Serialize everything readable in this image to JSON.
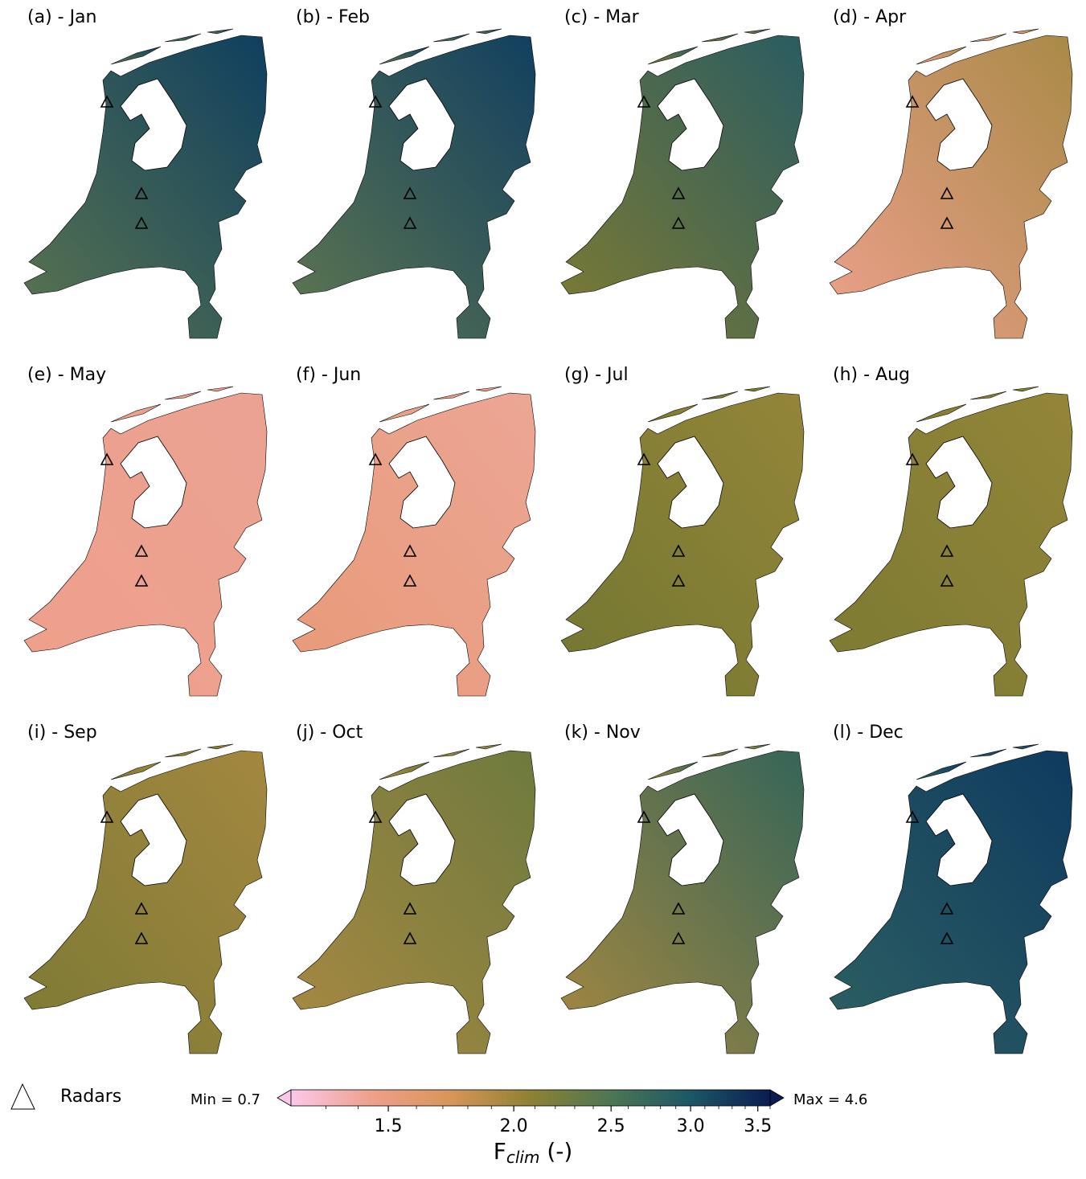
{
  "panels": [
    {
      "title": "(a) - Jan",
      "colors": [
        "#0f3f5f",
        "#5b7550"
      ]
    },
    {
      "title": "(b) - Feb",
      "colors": [
        "#113f60",
        "#5f7750"
      ]
    },
    {
      "title": "(c) - Mar",
      "colors": [
        "#2a5c62",
        "#7e7b32"
      ]
    },
    {
      "title": "(d) - Apr",
      "colors": [
        "#a98a47",
        "#eda08c"
      ]
    },
    {
      "title": "(e) - May",
      "colors": [
        "#eba293",
        "#eea08a"
      ]
    },
    {
      "title": "(f) - Jun",
      "colors": [
        "#eca695",
        "#e89a78"
      ]
    },
    {
      "title": "(g) - Jul",
      "colors": [
        "#938538",
        "#737732"
      ]
    },
    {
      "title": "(h) - Aug",
      "colors": [
        "#938538",
        "#7c7a33"
      ]
    },
    {
      "title": "(i) - Sep",
      "colors": [
        "#a3873f",
        "#7c7a35"
      ]
    },
    {
      "title": "(j) - Oct",
      "colors": [
        "#6e7a3e",
        "#a88942"
      ]
    },
    {
      "title": "(k) - Nov",
      "colors": [
        "#356558",
        "#a68840"
      ]
    },
    {
      "title": "(l) - Dec",
      "colors": [
        "#0f3a5f",
        "#2d6062"
      ]
    }
  ],
  "legend": {
    "label": "Radars"
  },
  "colorbar": {
    "min_label": "Min = 0.7",
    "max_label": "Max = 4.6",
    "lim": [
      1.2,
      3.6
    ],
    "log_scale": true,
    "ticks": [
      1.5,
      {
        "value": 2,
        "label": "2.0"
      },
      2.5,
      {
        "value": 3,
        "label": "3.0"
      },
      3.5
    ],
    "minor_ticks": [
      1.3,
      1.4,
      1.6,
      1.7,
      1.8,
      1.9,
      2.1,
      2.2,
      2.3,
      2.4,
      2.6,
      2.7,
      2.8,
      2.9,
      3.1,
      3.2,
      3.3,
      3.4,
      3.6
    ],
    "colormap": [
      "#fbc8ea",
      "#eea08c",
      "#d89659",
      "#8e8134",
      "#4d7654",
      "#1d5766",
      "#0a1c4f"
    ],
    "label": {
      "main": "F",
      "sub": "clim",
      "unit": " (-)"
    }
  }
}
